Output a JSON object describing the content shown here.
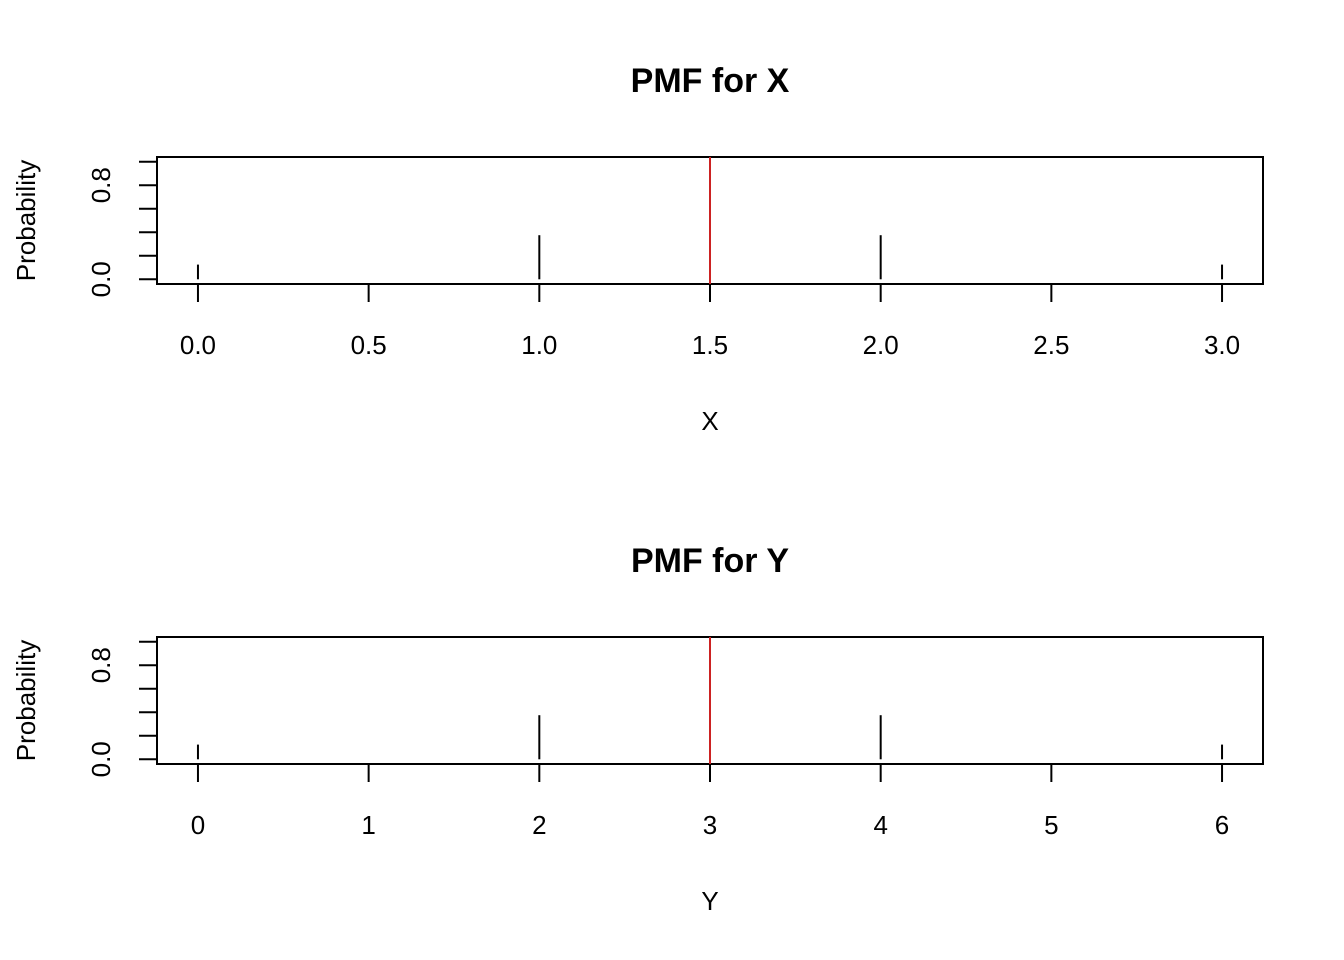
{
  "colors": {
    "line": "#000000",
    "mean_line": "#cc2222",
    "background": "#ffffff"
  },
  "chart_data": [
    {
      "type": "bar",
      "title": "PMF for X",
      "xlabel": "X",
      "ylabel": "Probability",
      "x": [
        0,
        1,
        2,
        3
      ],
      "values": [
        0.125,
        0.375,
        0.375,
        0.125
      ],
      "xlim": [
        -0.12,
        3.12
      ],
      "ylim": [
        -0.04,
        1.04
      ],
      "xticks": [
        0,
        0.5,
        1,
        1.5,
        2,
        2.5,
        3
      ],
      "xtick_labels": [
        "0.0",
        "0.5",
        "1.0",
        "1.5",
        "2.0",
        "2.5",
        "3.0"
      ],
      "yticks": [
        0,
        0.2,
        0.4,
        0.6,
        0.8,
        1.0
      ],
      "ytick_labels": [
        "0.0",
        "",
        "",
        "",
        "0.8",
        ""
      ],
      "mean": 1.5,
      "grid": false
    },
    {
      "type": "bar",
      "title": "PMF for Y",
      "xlabel": "Y",
      "ylabel": "Probability",
      "x": [
        0,
        2,
        4,
        6
      ],
      "values": [
        0.125,
        0.375,
        0.375,
        0.125
      ],
      "xlim": [
        -0.24,
        6.24
      ],
      "ylim": [
        -0.04,
        1.04
      ],
      "xticks": [
        0,
        1,
        2,
        3,
        4,
        5,
        6
      ],
      "xtick_labels": [
        "0",
        "1",
        "2",
        "3",
        "4",
        "5",
        "6"
      ],
      "yticks": [
        0,
        0.2,
        0.4,
        0.6,
        0.8,
        1.0
      ],
      "ytick_labels": [
        "0.0",
        "",
        "",
        "",
        "0.8",
        ""
      ],
      "mean": 3,
      "grid": false
    }
  ]
}
